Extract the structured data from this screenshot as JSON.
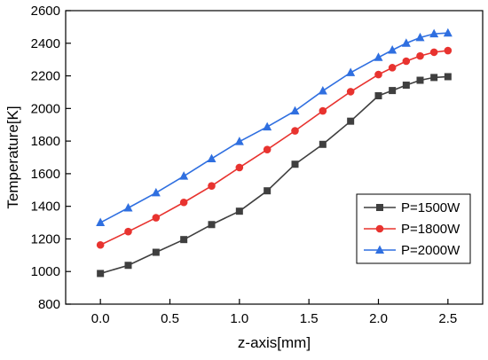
{
  "chart_data": {
    "type": "line",
    "title": "",
    "xlabel": "z-axis[mm]",
    "ylabel": "Temperature[K]",
    "xlim": [
      -0.25,
      2.75
    ],
    "ylim": [
      800,
      2600
    ],
    "xticks": [
      "0.0",
      "0.5",
      "1.0",
      "1.5",
      "2.0",
      "2.5"
    ],
    "yticks": [
      "800",
      "1000",
      "1200",
      "1400",
      "1600",
      "1800",
      "2000",
      "2200",
      "2400",
      "2600"
    ],
    "x": [
      0.0,
      0.2,
      0.4,
      0.6,
      0.8,
      1.0,
      1.2,
      1.4,
      1.6,
      1.8,
      2.0,
      2.1,
      2.2,
      2.3,
      2.4,
      2.5
    ],
    "grid": false,
    "legend_position": "bottom-right",
    "series": [
      {
        "name": "P=1500W",
        "color": "#3f3f3f",
        "marker": "square",
        "values": [
          988,
          1038,
          1118,
          1196,
          1288,
          1370,
          1495,
          1658,
          1780,
          1922,
          2078,
          2110,
          2143,
          2173,
          2190,
          2195
        ]
      },
      {
        "name": "P=1800W",
        "color": "#e8332f",
        "marker": "circle",
        "values": [
          1163,
          1245,
          1330,
          1424,
          1525,
          1638,
          1748,
          1863,
          1985,
          2103,
          2208,
          2250,
          2290,
          2322,
          2345,
          2355
        ]
      },
      {
        "name": "P=2000W",
        "color": "#2f6fe0",
        "marker": "triangle",
        "values": [
          1300,
          1390,
          1483,
          1585,
          1692,
          1797,
          1887,
          1985,
          2108,
          2220,
          2313,
          2358,
          2400,
          2435,
          2458,
          2463
        ]
      }
    ]
  }
}
